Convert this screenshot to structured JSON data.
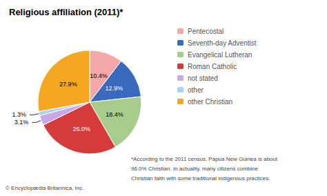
{
  "chart_data": {
    "type": "pie",
    "title": "Religious affiliation (2011)*",
    "categories": [
      "Pentecostal",
      "Seventh-day Adventist",
      "Evangelical Lutheran",
      "Roman Catholic",
      "not stated",
      "other",
      "other Christian"
    ],
    "values": [
      10.4,
      12.9,
      18.4,
      26.0,
      3.1,
      1.3,
      27.9
    ],
    "value_labels": [
      "10.4%",
      "12.9%",
      "18.4%",
      "26.0%",
      "3.1%",
      "1.3%",
      "27.9%"
    ],
    "colors": [
      "#f4a8a8",
      "#3a6abf",
      "#a8cc8c",
      "#d63b3b",
      "#c8a8e8",
      "#a8d4f5",
      "#f5a623"
    ],
    "data_labels": true,
    "legend": "right",
    "annotations": [
      "*According to the 2011 census, Papua New Guinea is about",
      "96.0% Christian. In actuality, many citizens combine",
      "Christian faith with some traditional indigenous practices.",
      "© Encyclopædia Britannica, Inc."
    ]
  }
}
